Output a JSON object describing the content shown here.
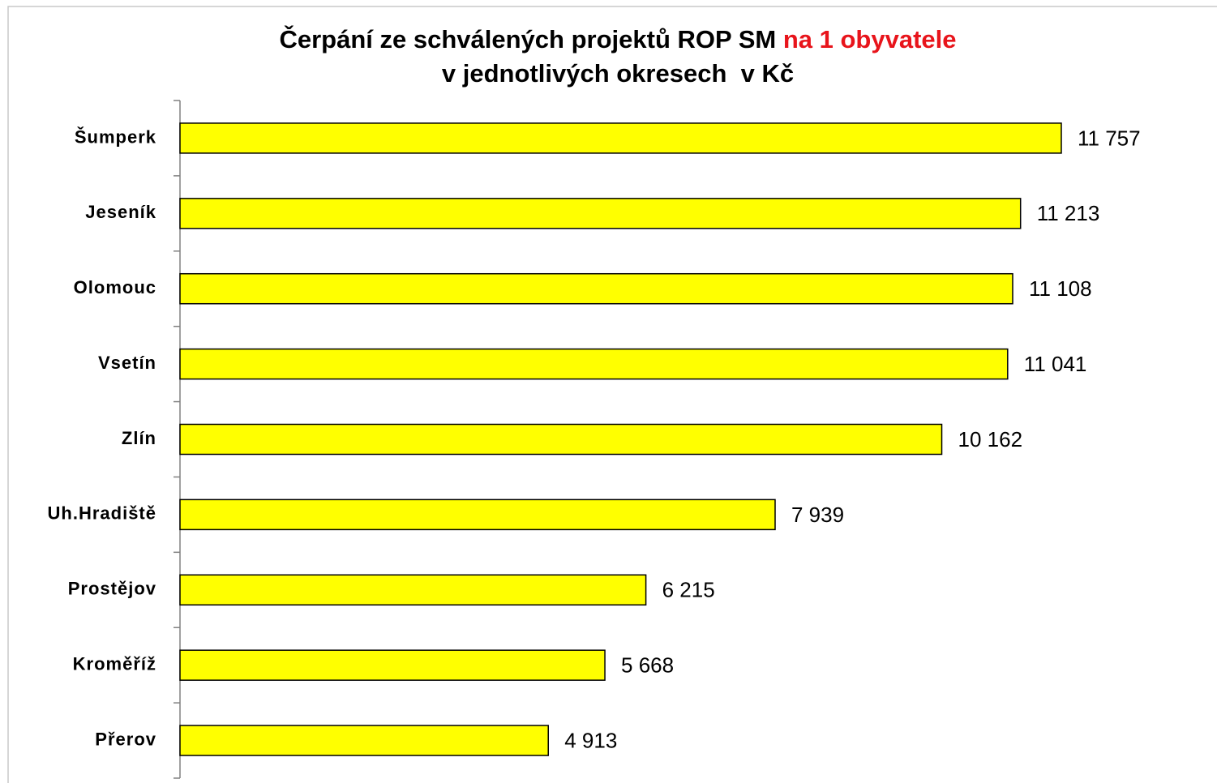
{
  "chart_data": {
    "type": "bar",
    "orientation": "horizontal",
    "title": "Čerpání ze schválených projektů ROP SM",
    "title_highlight": "na 1 obyvatele",
    "title_highlight_color": "#e8141b",
    "subtitle": "v jednotlivých okresech  v Kč",
    "categories": [
      "Šumperk",
      "Jeseník",
      "Olomouc",
      "Vsetín",
      "Zlín",
      "Uh.Hradiště",
      "Prostějov",
      "Kroměříž",
      "Přerov"
    ],
    "values": [
      11757,
      11213,
      11108,
      11041,
      10162,
      7939,
      6215,
      5668,
      4913
    ],
    "value_labels": [
      "11 757",
      "11 213",
      "11 108",
      "11 041",
      "10 162",
      "7 939",
      "6 215",
      "5 668",
      "4 913"
    ],
    "color": "#ffff00"
  }
}
